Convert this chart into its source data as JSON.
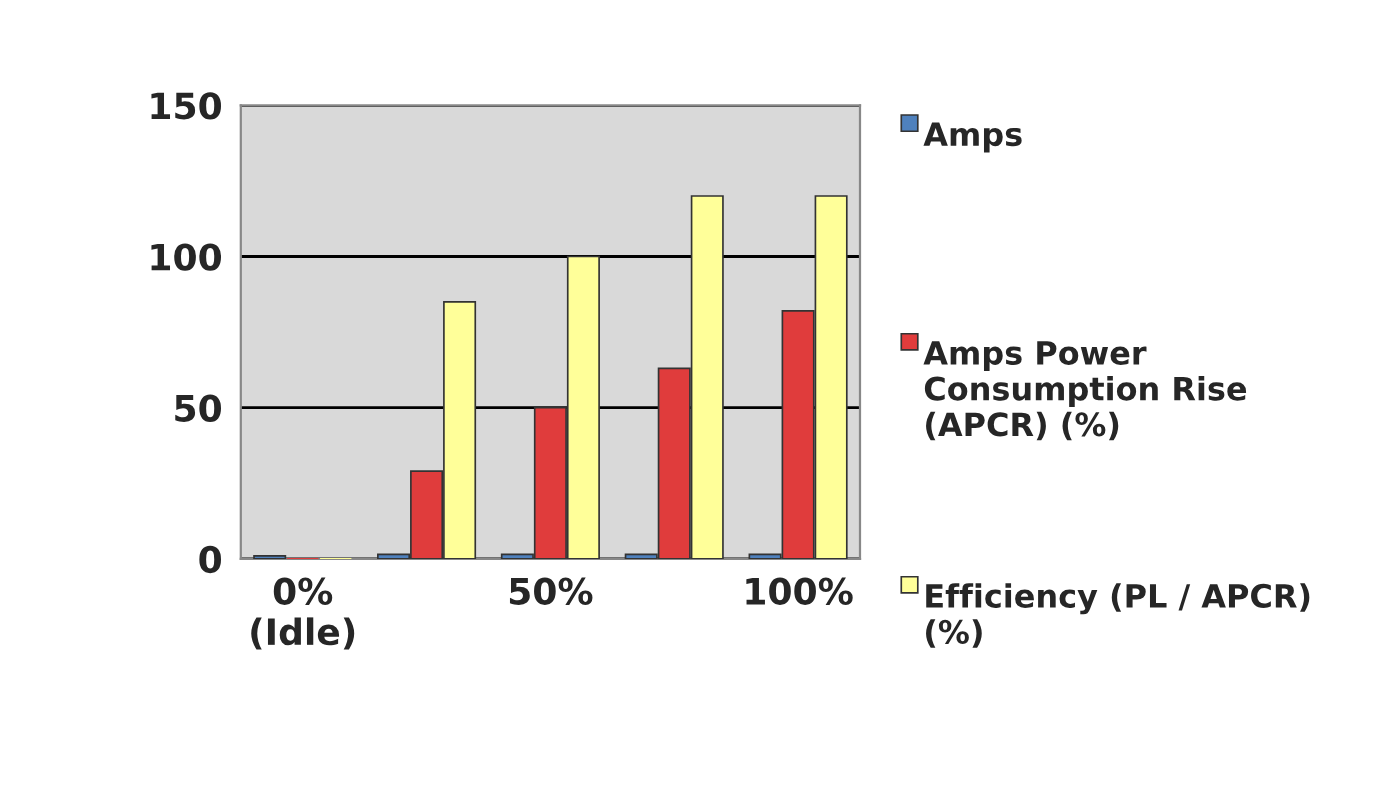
{
  "chart_data": {
    "type": "bar",
    "categories": [
      "0%\n(Idle)",
      null,
      "50%",
      null,
      "100%"
    ],
    "series": [
      {
        "name": "Amps",
        "color": "#4f81bd",
        "values": [
          1,
          1.5,
          1.5,
          1.5,
          1.5
        ]
      },
      {
        "name": "Amps Power Consumption Rise (APCR) (%)",
        "color": "#e03c3c",
        "values": [
          0,
          29,
          50,
          63,
          82
        ]
      },
      {
        "name": "Efficiency (PL / APCR) (%)",
        "color": "#ffff99",
        "values": [
          0,
          85,
          100,
          120,
          120
        ]
      }
    ],
    "ylim": [
      0,
      150
    ],
    "yticks": [
      0,
      50,
      100,
      150
    ],
    "grid": "y",
    "legend": "right"
  }
}
